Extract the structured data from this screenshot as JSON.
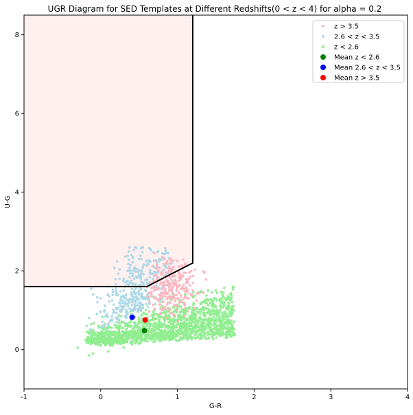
{
  "chart_data": {
    "type": "scatter",
    "title": "UGR Diagram for SED Templates at Different Redshifts(0 < z < 4) for alpha = 0.2",
    "xlabel": "G-R",
    "ylabel": "U-G",
    "xlim": [
      -1,
      4
    ],
    "ylim": [
      -1,
      8.5
    ],
    "xticks": [
      -1,
      0,
      1,
      2,
      3,
      4
    ],
    "yticks": [
      0,
      2,
      4,
      6,
      8
    ],
    "grid": false,
    "legend_position": "top-right",
    "selection_region": {
      "fill": "#fff0f0",
      "edge": "#000000",
      "polygon": [
        [
          -1,
          8.5
        ],
        [
          -1,
          1.6
        ],
        [
          0.6,
          1.6
        ],
        [
          1.2,
          2.2
        ],
        [
          1.2,
          8.5
        ]
      ]
    },
    "series": [
      {
        "name": "z < 2.6",
        "color": "#90ee90",
        "marker": "small-point",
        "cluster": {
          "n": 1500,
          "x_range": [
            -0.2,
            1.75
          ],
          "y_range": [
            -0.2,
            1.6
          ],
          "center": [
            0.6,
            0.5
          ]
        },
        "points": [
          [
            -0.3,
            0.05
          ],
          [
            -0.15,
            -0.15
          ],
          [
            0.0,
            0.1
          ],
          [
            0.1,
            0.2
          ],
          [
            0.2,
            0.3
          ],
          [
            0.3,
            0.45
          ],
          [
            0.4,
            0.6
          ],
          [
            0.5,
            0.7
          ],
          [
            0.6,
            0.9
          ],
          [
            0.7,
            1.0
          ],
          [
            0.8,
            1.1
          ],
          [
            0.9,
            1.2
          ],
          [
            1.0,
            1.3
          ],
          [
            1.1,
            1.4
          ],
          [
            1.2,
            1.35
          ],
          [
            1.3,
            1.45
          ],
          [
            1.4,
            1.5
          ],
          [
            1.5,
            1.5
          ],
          [
            1.6,
            1.45
          ],
          [
            1.7,
            1.3
          ],
          [
            1.6,
            1.1
          ],
          [
            1.5,
            0.9
          ],
          [
            1.4,
            0.75
          ],
          [
            1.3,
            0.6
          ],
          [
            1.2,
            0.5
          ],
          [
            1.1,
            0.45
          ],
          [
            1.0,
            0.35
          ],
          [
            0.9,
            0.3
          ],
          [
            0.8,
            0.25
          ],
          [
            0.7,
            0.2
          ],
          [
            0.5,
            0.15
          ],
          [
            0.3,
            0.05
          ],
          [
            0.1,
            -0.05
          ],
          [
            -0.1,
            -0.1
          ],
          [
            0.2,
            0.6
          ],
          [
            0.4,
            0.9
          ],
          [
            0.6,
            1.15
          ],
          [
            0.8,
            1.3
          ],
          [
            1.0,
            1.05
          ],
          [
            1.2,
            0.9
          ],
          [
            1.45,
            1.25
          ],
          [
            0.35,
            0.3
          ],
          [
            0.55,
            0.4
          ],
          [
            0.75,
            0.6
          ],
          [
            0.95,
            0.7
          ],
          [
            1.15,
            0.75
          ],
          [
            1.35,
            1.0
          ],
          [
            1.55,
            1.25
          ]
        ]
      },
      {
        "name": "2.6 < z < 3.5",
        "color": "#add8e6",
        "marker": "small-point",
        "cluster": {
          "n": 350,
          "x_range": [
            -0.2,
            1.0
          ],
          "y_range": [
            0.3,
            2.65
          ],
          "center": [
            0.4,
            1.3
          ]
        },
        "points": [
          [
            0.45,
            2.6
          ],
          [
            0.55,
            2.6
          ],
          [
            0.65,
            2.55
          ],
          [
            0.75,
            2.5
          ],
          [
            0.85,
            2.45
          ],
          [
            0.4,
            2.4
          ],
          [
            0.5,
            2.3
          ],
          [
            0.6,
            2.25
          ],
          [
            0.7,
            2.1
          ],
          [
            0.35,
            2.0
          ],
          [
            0.45,
            2.05
          ],
          [
            0.55,
            2.1
          ],
          [
            0.65,
            1.95
          ],
          [
            0.3,
            1.8
          ],
          [
            0.4,
            1.75
          ],
          [
            0.5,
            1.85
          ],
          [
            0.6,
            1.7
          ],
          [
            0.75,
            1.8
          ],
          [
            0.85,
            1.9
          ],
          [
            0.95,
            1.85
          ],
          [
            0.1,
            1.6
          ],
          [
            0.2,
            1.55
          ],
          [
            0.3,
            1.5
          ],
          [
            0.4,
            1.45
          ],
          [
            0.5,
            1.4
          ],
          [
            -0.1,
            1.4
          ],
          [
            0.0,
            1.3
          ],
          [
            0.15,
            1.25
          ],
          [
            0.25,
            1.2
          ],
          [
            0.35,
            1.15
          ],
          [
            0.45,
            1.1
          ],
          [
            0.55,
            1.05
          ],
          [
            0.25,
            1.0
          ],
          [
            0.35,
            0.95
          ],
          [
            -0.15,
            0.8
          ],
          [
            -0.05,
            0.9
          ],
          [
            0.05,
            1.0
          ],
          [
            0.15,
            0.85
          ],
          [
            0.3,
            0.7
          ],
          [
            0.45,
            0.65
          ]
        ]
      },
      {
        "name": "z > 3.5",
        "color": "#ffb6c1",
        "marker": "small-point",
        "cluster": {
          "n": 250,
          "x_range": [
            0.6,
            1.4
          ],
          "y_range": [
            0.7,
            2.4
          ],
          "center": [
            0.9,
            1.6
          ]
        },
        "points": [
          [
            0.7,
            2.45
          ],
          [
            0.8,
            2.35
          ],
          [
            0.9,
            2.3
          ],
          [
            1.0,
            2.25
          ],
          [
            1.1,
            2.15
          ],
          [
            0.95,
            2.1
          ],
          [
            1.05,
            2.05
          ],
          [
            0.75,
            2.0
          ],
          [
            0.85,
            1.95
          ],
          [
            0.95,
            1.9
          ],
          [
            1.05,
            1.85
          ],
          [
            1.15,
            1.8
          ],
          [
            0.8,
            1.7
          ],
          [
            0.9,
            1.65
          ],
          [
            1.0,
            1.6
          ],
          [
            1.1,
            1.55
          ],
          [
            1.2,
            1.5
          ],
          [
            0.7,
            1.5
          ],
          [
            0.85,
            1.45
          ],
          [
            0.95,
            1.4
          ],
          [
            1.05,
            1.35
          ],
          [
            1.15,
            1.3
          ],
          [
            1.25,
            1.25
          ],
          [
            0.75,
            1.25
          ],
          [
            0.9,
            1.2
          ],
          [
            1.0,
            1.1
          ],
          [
            1.1,
            1.05
          ],
          [
            0.8,
            1.0
          ],
          [
            0.95,
            0.9
          ],
          [
            0.85,
            0.8
          ]
        ]
      },
      {
        "name": "Mean z < 2.6",
        "color": "#008000",
        "marker": "large-dot",
        "points": [
          [
            0.57,
            0.48
          ]
        ]
      },
      {
        "name": "Mean 2.6 < z < 3.5",
        "color": "#0000ff",
        "marker": "large-dot",
        "points": [
          [
            0.41,
            0.82
          ]
        ]
      },
      {
        "name": "Mean z > 3.5",
        "color": "#ff0000",
        "marker": "large-dot",
        "points": [
          [
            0.58,
            0.75
          ]
        ]
      }
    ],
    "legend": [
      {
        "label": "z > 3.5",
        "color": "#ffb6c1",
        "marker": "small"
      },
      {
        "label": "2.6 < z < 3.5",
        "color": "#add8e6",
        "marker": "small"
      },
      {
        "label": "z < 2.6",
        "color": "#90ee90",
        "marker": "small"
      },
      {
        "label": "Mean z < 2.6",
        "color": "#008000",
        "marker": "large"
      },
      {
        "label": "Mean 2.6 < z < 3.5",
        "color": "#0000ff",
        "marker": "large"
      },
      {
        "label": "Mean z > 3.5",
        "color": "#ff0000",
        "marker": "large"
      }
    ]
  }
}
